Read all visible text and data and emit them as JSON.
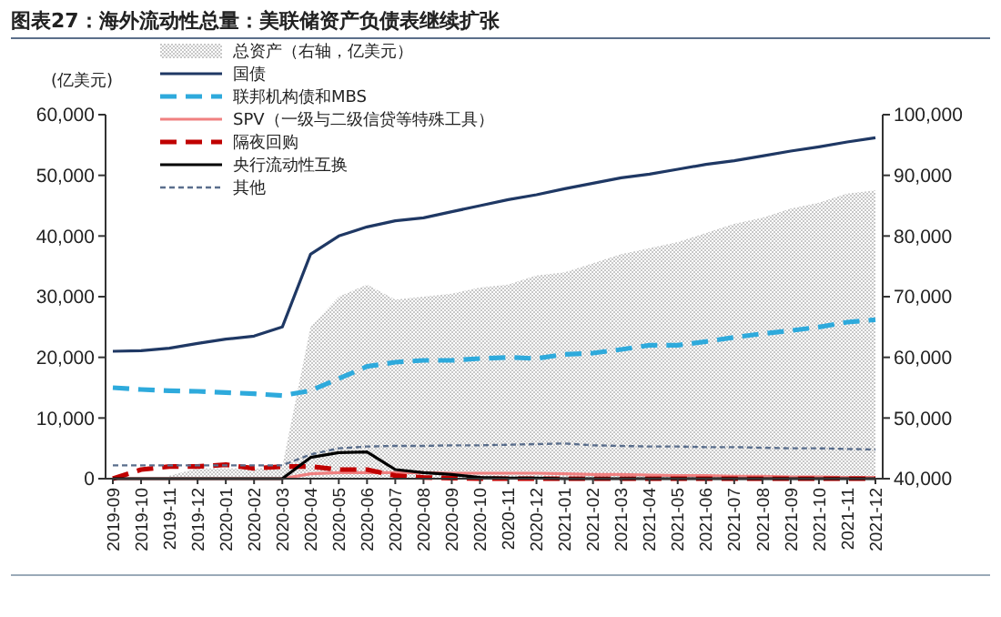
{
  "chart_data": {
    "type": "line",
    "title": "图表27：海外流动性总量：美联储资产负债表继续扩张",
    "ylabel": "(亿美元)",
    "categories": [
      "2019-09",
      "2019-10",
      "2019-11",
      "2019-12",
      "2020-01",
      "2020-02",
      "2020-03",
      "2020-04",
      "2020-05",
      "2020-06",
      "2020-07",
      "2020-08",
      "2020-09",
      "2020-10",
      "2020-11",
      "2020-12",
      "2021-01",
      "2021-02",
      "2021-03",
      "2021-04",
      "2021-05",
      "2021-06",
      "2021-07",
      "2021-08",
      "2021-09",
      "2021-10",
      "2021-11",
      "2021-12"
    ],
    "ylim": [
      0,
      60000
    ],
    "yticks": [
      {
        "value": 0,
        "label": "0"
      },
      {
        "value": 10000,
        "label": "10,000"
      },
      {
        "value": 20000,
        "label": "20,000"
      },
      {
        "value": 30000,
        "label": "30,000"
      },
      {
        "value": 40000,
        "label": "40,000"
      },
      {
        "value": 50000,
        "label": "50,000"
      },
      {
        "value": 60000,
        "label": "60,000"
      }
    ],
    "y2lim": [
      40000,
      100000
    ],
    "y2ticks": [
      {
        "value": 40000,
        "label": "40,000"
      },
      {
        "value": 50000,
        "label": "50,000"
      },
      {
        "value": 60000,
        "label": "60,000"
      },
      {
        "value": 70000,
        "label": "70,000"
      },
      {
        "value": 80000,
        "label": "80,000"
      },
      {
        "value": 90000,
        "label": "90,000"
      },
      {
        "value": 100000,
        "label": "100,000"
      }
    ],
    "legend": "top left",
    "grid": false,
    "series": [
      {
        "name": "总资产（右轴，亿美元）",
        "type": "area",
        "axis": "y2",
        "color": "#c8c8c8",
        "values": [
          null,
          null,
          40500,
          41700,
          41700,
          41600,
          42000,
          65000,
          70000,
          72000,
          69500,
          70000,
          70500,
          71500,
          72000,
          73500,
          74000,
          75500,
          77000,
          78000,
          79000,
          80500,
          82000,
          83000,
          84500,
          85500,
          87000,
          87500
        ]
      },
      {
        "name": "国债",
        "line_style": "solid",
        "color": "#1f3864",
        "values": [
          21000,
          21100,
          21500,
          22300,
          23000,
          23500,
          25000,
          37000,
          40000,
          41500,
          42500,
          43000,
          44000,
          45000,
          46000,
          46800,
          47800,
          48700,
          49600,
          50200,
          51000,
          51800,
          52400,
          53200,
          54000,
          54700,
          55500,
          56200
        ]
      },
      {
        "name": "联邦机构债和MBS",
        "line_style": "dashed",
        "color": "#2eaadc",
        "values": [
          15000,
          14700,
          14500,
          14400,
          14200,
          14000,
          13700,
          14500,
          16500,
          18500,
          19200,
          19500,
          19500,
          19800,
          20000,
          19800,
          20500,
          20700,
          21300,
          22000,
          22000,
          22600,
          23300,
          23900,
          24400,
          25000,
          25800,
          26200
        ]
      },
      {
        "name": "SPV（一级与二级信贷等特殊工具）",
        "line_style": "solid",
        "color": "#f08080",
        "values": [
          0,
          0,
          0,
          0,
          0,
          0,
          0,
          800,
          1000,
          1000,
          1000,
          1000,
          900,
          900,
          900,
          900,
          800,
          700,
          700,
          600,
          500,
          500,
          400,
          400,
          300,
          300,
          200,
          200
        ]
      },
      {
        "name": "隔夜回购",
        "line_style": "dashed",
        "color": "#c00000",
        "values": [
          0,
          1500,
          2000,
          2000,
          2300,
          1700,
          2000,
          2000,
          1500,
          1500,
          500,
          200,
          100,
          0,
          0,
          0,
          0,
          0,
          0,
          0,
          0,
          0,
          0,
          0,
          0,
          0,
          0,
          0
        ]
      },
      {
        "name": "央行流动性互换",
        "line_style": "solid",
        "color": "#000000",
        "values": [
          0,
          0,
          0,
          0,
          0,
          0,
          0,
          3500,
          4300,
          4400,
          1500,
          1000,
          700,
          200,
          100,
          100,
          0,
          0,
          0,
          0,
          0,
          0,
          0,
          0,
          0,
          0,
          0,
          0
        ]
      },
      {
        "name": "其他",
        "line_style": "dotted",
        "color": "#5a6e8c",
        "values": [
          2200,
          2200,
          2200,
          2200,
          2200,
          2200,
          2200,
          4000,
          5000,
          5300,
          5400,
          5400,
          5500,
          5500,
          5600,
          5700,
          5800,
          5500,
          5400,
          5300,
          5300,
          5200,
          5200,
          5100,
          5000,
          5000,
          4900,
          4800
        ]
      }
    ]
  }
}
